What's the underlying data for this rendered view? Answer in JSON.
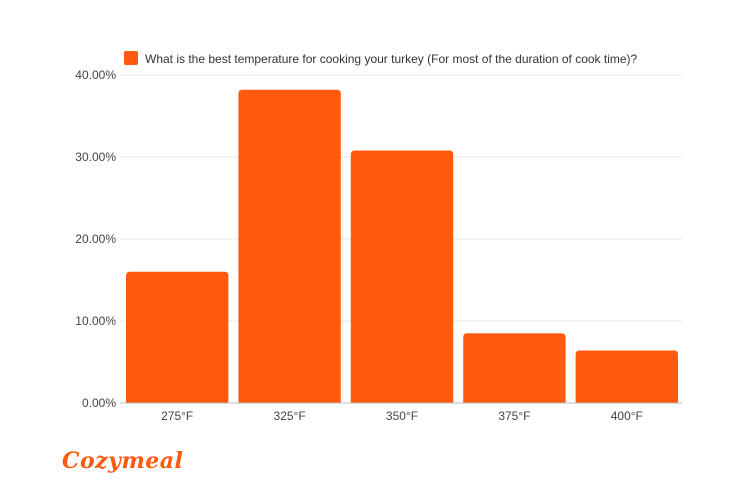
{
  "chart_data": {
    "type": "bar",
    "categories": [
      "275°F",
      "325°F",
      "350°F",
      "375°F",
      "400°F"
    ],
    "series": [
      {
        "name": "What is the best temperature for cooking your turkey (For most of the duration of cook time)?",
        "values": [
          16.0,
          38.2,
          30.8,
          8.5,
          6.4
        ]
      }
    ],
    "ylim": [
      0,
      40
    ],
    "yticks": [
      "0.00%",
      "10.00%",
      "20.00%",
      "30.00%",
      "40.00%"
    ],
    "ytick_values": [
      0,
      10,
      20,
      30,
      40
    ],
    "grid": true,
    "legend_position": "top",
    "bar_color": "#FF5A0F"
  },
  "brand": {
    "name": "Cozymeal",
    "color": "#FF5A0F"
  }
}
